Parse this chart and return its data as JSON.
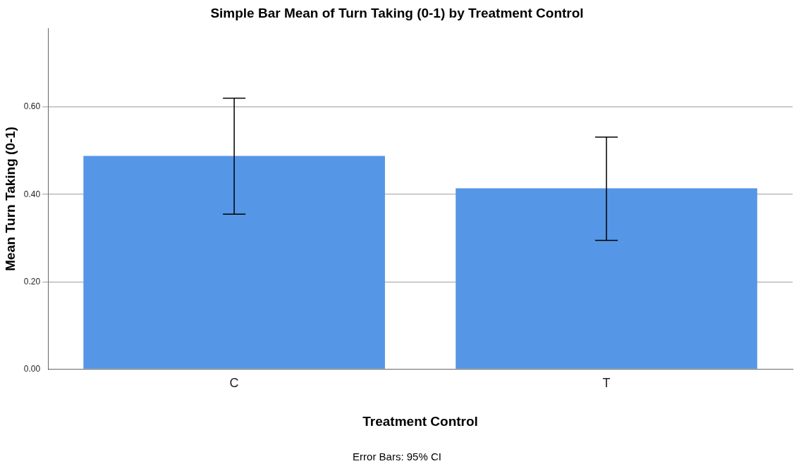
{
  "chart_data": {
    "type": "bar",
    "title": "Simple Bar Mean of Turn Taking (0-1) by Treatment Control",
    "xlabel": "Treatment Control",
    "ylabel": "Mean Turn Taking (0-1)",
    "categories": [
      "C",
      "T"
    ],
    "values": [
      0.488,
      0.414
    ],
    "color": "#5596e6",
    "errors": [
      [
        0.355,
        0.62
      ],
      [
        0.295,
        0.531
      ]
    ],
    "ylim": [
      0,
      0.78
    ],
    "yticks": [
      {
        "value": 0,
        "label": "0.00"
      },
      {
        "value": 0.2,
        "label": "0.20"
      },
      {
        "value": 0.4,
        "label": "0.40"
      },
      {
        "value": 0.6,
        "label": "0.60"
      }
    ],
    "grid": "y",
    "legend": false,
    "annotations": [
      "Error Bars: 95% CI"
    ]
  }
}
